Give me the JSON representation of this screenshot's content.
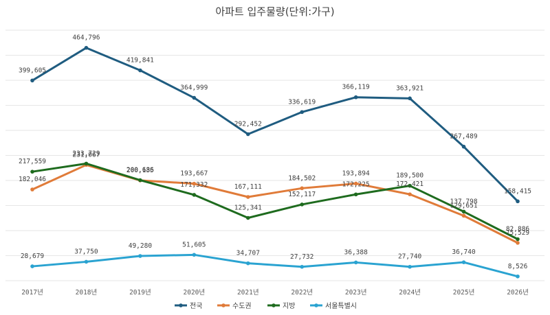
{
  "chart_data": {
    "type": "line",
    "title": "아파트 입주물량(단위:가구)",
    "categories": [
      "2017년",
      "2018년",
      "2019년",
      "2020년",
      "2021년",
      "2022년",
      "2023년",
      "2024년",
      "2025년",
      "2026년"
    ],
    "ylim": [
      0,
      500000
    ],
    "grid": true,
    "legend_position": "bottom",
    "series": [
      {
        "name": "전국",
        "color": "#1f5c80",
        "values": [
          399605,
          464796,
          419841,
          364999,
          292452,
          336619,
          366119,
          363921,
          267489,
          158415
        ]
      },
      {
        "name": "수도권",
        "color": "#e07b39",
        "values": [
          182046,
          231067,
          200135,
          193667,
          167111,
          184502,
          193894,
          172421,
          129651,
          75529
        ]
      },
      {
        "name": "지방",
        "color": "#1e6b1e",
        "values": [
          217559,
          233729,
          200686,
          171332,
          125341,
          152117,
          172225,
          189500,
          137798,
          82886
        ]
      },
      {
        "name": "서울특별시",
        "color": "#2aa3d1",
        "values": [
          28679,
          37750,
          49280,
          51605,
          34707,
          27732,
          36388,
          27740,
          36740,
          8526
        ]
      }
    ]
  }
}
